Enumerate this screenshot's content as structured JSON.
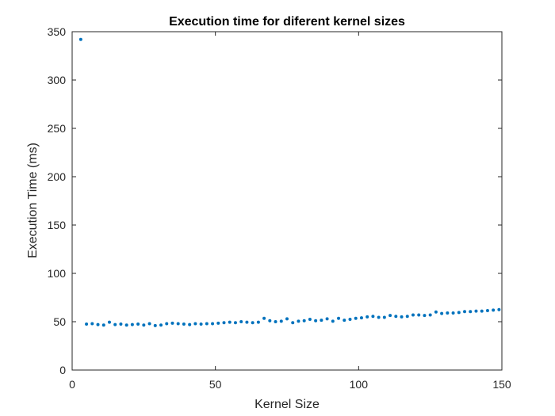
{
  "chart_data": {
    "type": "scatter",
    "title": "Execution time for diferent kernel sizes",
    "xlabel": "Kernel Size",
    "ylabel": "Execution Time (ms)",
    "xlim": [
      0,
      150
    ],
    "ylim": [
      0,
      350
    ],
    "xticks": [
      0,
      50,
      100,
      150
    ],
    "yticks": [
      0,
      50,
      100,
      150,
      200,
      250,
      300,
      350
    ],
    "grid": false,
    "marker_color": "#0072BD",
    "x": [
      3,
      5,
      7,
      9,
      11,
      13,
      15,
      17,
      19,
      21,
      23,
      25,
      27,
      29,
      31,
      33,
      35,
      37,
      39,
      41,
      43,
      45,
      47,
      49,
      51,
      53,
      55,
      57,
      59,
      61,
      63,
      65,
      67,
      69,
      71,
      73,
      75,
      77,
      79,
      81,
      83,
      85,
      87,
      89,
      91,
      93,
      95,
      97,
      99,
      101,
      103,
      105,
      107,
      109,
      111,
      113,
      115,
      117,
      119,
      121,
      123,
      125,
      127,
      129,
      131,
      133,
      135,
      137,
      139,
      141,
      143,
      145,
      147,
      149
    ],
    "y": [
      342,
      47.5,
      48,
      47,
      46.5,
      49.5,
      47,
      47.5,
      46.5,
      47,
      47.5,
      46.5,
      48,
      46,
      46.5,
      48,
      48.5,
      48,
      47.5,
      47,
      48,
      47.5,
      48,
      48,
      48.5,
      49,
      49.5,
      49,
      50,
      49.5,
      49,
      49.5,
      53.5,
      51,
      50,
      50.5,
      53,
      49,
      50.5,
      51,
      52.5,
      51,
      51.5,
      53,
      50.5,
      53.5,
      51.5,
      52.5,
      53.5,
      54,
      55,
      55.5,
      54.5,
      54.5,
      56.5,
      55.5,
      55,
      55.5,
      57,
      57,
      56.5,
      57,
      60,
      58.5,
      59,
      59,
      59.5,
      60.5,
      60.5,
      61,
      61,
      61.5,
      62,
      62.5
    ]
  }
}
